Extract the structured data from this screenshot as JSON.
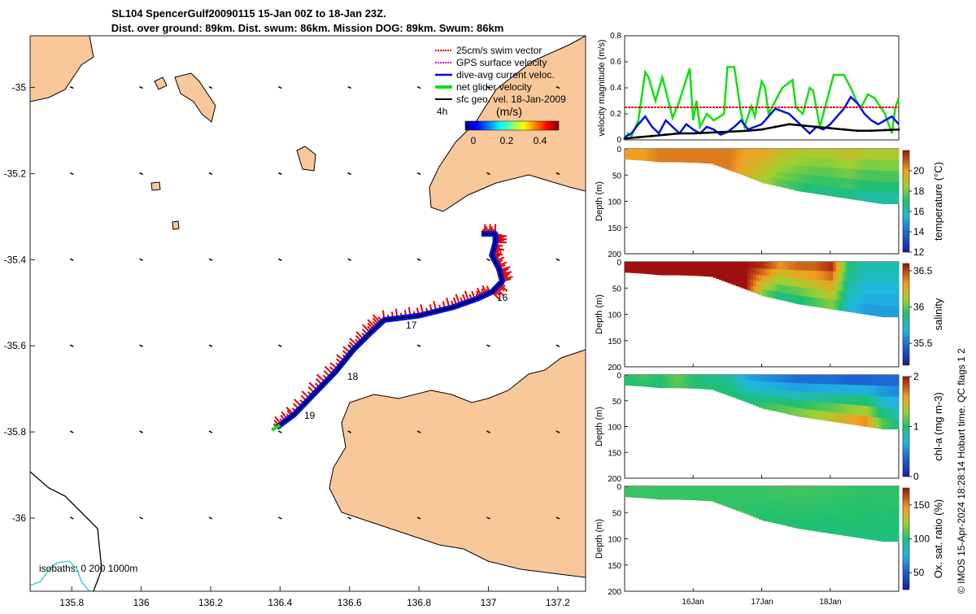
{
  "title": {
    "line1": "SL104 SpencerGulf20090115 15-Jan 00Z to 18-Jan 23Z.",
    "line2": "Dist. over ground: 89km. Dist. swum: 86km. Mission DOG: 89km. Swum: 86km"
  },
  "colors": {
    "land": "#f8c89a",
    "swim": "#e00000",
    "gps": "#e000e0",
    "dive": "#0010e0",
    "net": "#10e010",
    "sfc": "#000000",
    "iso200": "#000000",
    "iso1000": "#22cccc"
  },
  "map": {
    "x_ticks": [
      "135.8",
      "136",
      "136.2",
      "136.4",
      "136.6",
      "136.8",
      "137",
      "137.2"
    ],
    "y_ticks": [
      "-35",
      "-35.2",
      "-35.4",
      "-35.6",
      "-35.8",
      "-36"
    ],
    "xlim": [
      135.68,
      137.28
    ],
    "ylim": [
      -36.17,
      -34.88
    ],
    "legend": [
      "25cm/s swim vector",
      "GPS surface velocity",
      "dive-avg current veloc.",
      "net glider velocity",
      "sfc geo. vel. 18-Jan-2009"
    ],
    "scale_label": "4h",
    "colorbar_label": "(m/s)",
    "colorbar_ticks": [
      "0",
      "0.2",
      "0.4"
    ],
    "day_labels": [
      "16",
      "17",
      "18",
      "19"
    ],
    "isobaths_label": "isobaths: 0   200  1000m",
    "track_lonlat": [
      [
        136.39,
        -35.79
      ],
      [
        136.44,
        -35.76
      ],
      [
        136.5,
        -35.71
      ],
      [
        136.56,
        -35.66
      ],
      [
        136.61,
        -35.61
      ],
      [
        136.66,
        -35.57
      ],
      [
        136.7,
        -35.54
      ],
      [
        136.8,
        -35.53
      ],
      [
        136.9,
        -35.51
      ],
      [
        136.97,
        -35.49
      ],
      [
        137.01,
        -35.475
      ],
      [
        137.04,
        -35.45
      ],
      [
        137.03,
        -35.42
      ],
      [
        137.01,
        -35.39
      ],
      [
        137.02,
        -35.36
      ],
      [
        137.02,
        -35.34
      ],
      [
        136.98,
        -35.34
      ]
    ]
  },
  "chart_data": [
    {
      "type": "line",
      "title": "velocity magnitude",
      "ylabel": "velocity magnitude (m/s)",
      "ylim": [
        0,
        0.8
      ],
      "yticks": [
        "0",
        "0.2",
        "0.4",
        "0.6",
        "0.8"
      ],
      "xlim": [
        15.0,
        19.0
      ],
      "series": [
        {
          "name": "net glider velocity",
          "color": "#10e010",
          "x": [
            15.0,
            15.05,
            15.1,
            15.2,
            15.3,
            15.35,
            15.45,
            15.55,
            15.6,
            15.7,
            15.8,
            15.95,
            16.0,
            16.05,
            16.1,
            16.2,
            16.3,
            16.45,
            16.5,
            16.6,
            16.7,
            16.75,
            16.85,
            16.9,
            17.0,
            17.05,
            17.1,
            17.2,
            17.3,
            17.45,
            17.5,
            17.6,
            17.7,
            17.75,
            17.85,
            17.95,
            18.05,
            18.2,
            18.3,
            18.4,
            18.45,
            18.55,
            18.65,
            18.7,
            18.8,
            18.9,
            18.95,
            19.0
          ],
          "y": [
            0.0,
            0.05,
            0.03,
            0.15,
            0.52,
            0.48,
            0.3,
            0.48,
            0.38,
            0.17,
            0.3,
            0.55,
            0.15,
            0.3,
            0.1,
            0.2,
            0.15,
            0.2,
            0.56,
            0.56,
            0.2,
            0.1,
            0.26,
            0.18,
            0.45,
            0.4,
            0.2,
            0.3,
            0.4,
            0.46,
            0.25,
            0.2,
            0.4,
            0.38,
            0.1,
            0.3,
            0.5,
            0.5,
            0.4,
            0.28,
            0.25,
            0.35,
            0.32,
            0.28,
            0.2,
            0.05,
            0.25,
            0.32
          ]
        },
        {
          "name": "dive-avg current veloc.",
          "color": "#0010e0",
          "x": [
            15.0,
            15.1,
            15.2,
            15.3,
            15.4,
            15.5,
            15.6,
            15.7,
            15.8,
            15.9,
            16.0,
            16.1,
            16.2,
            16.3,
            16.4,
            16.5,
            16.6,
            16.7,
            16.8,
            16.9,
            17.0,
            17.1,
            17.2,
            17.3,
            17.4,
            17.5,
            17.6,
            17.7,
            17.8,
            17.9,
            18.0,
            18.1,
            18.2,
            18.3,
            18.4,
            18.5,
            18.6,
            18.7,
            18.8,
            18.9,
            19.0
          ],
          "y": [
            0.02,
            0.05,
            0.12,
            0.18,
            0.1,
            0.05,
            0.15,
            0.1,
            0.05,
            0.12,
            0.08,
            0.05,
            0.1,
            0.08,
            0.04,
            0.06,
            0.1,
            0.15,
            0.08,
            0.1,
            0.12,
            0.18,
            0.24,
            0.22,
            0.2,
            0.15,
            0.1,
            0.05,
            0.1,
            0.08,
            0.12,
            0.18,
            0.24,
            0.33,
            0.28,
            0.2,
            0.15,
            0.12,
            0.15,
            0.18,
            0.12
          ]
        },
        {
          "name": "sfc geo. vel.",
          "color": "#000000",
          "x": [
            15.0,
            15.2,
            15.4,
            15.6,
            15.8,
            16.0,
            16.2,
            16.4,
            16.6,
            16.8,
            17.0,
            17.2,
            17.4,
            17.6,
            17.8,
            18.0,
            18.2,
            18.4,
            18.6,
            18.8,
            19.0
          ],
          "y": [
            0.01,
            0.02,
            0.03,
            0.04,
            0.05,
            0.05,
            0.055,
            0.06,
            0.065,
            0.07,
            0.08,
            0.1,
            0.12,
            0.11,
            0.1,
            0.09,
            0.08,
            0.07,
            0.07,
            0.075,
            0.08
          ]
        },
        {
          "name": "25cm/s swim vector",
          "color": "#e00000",
          "x": [
            15.0,
            19.0
          ],
          "y": [
            0.25,
            0.25
          ]
        }
      ]
    },
    {
      "type": "heatmap",
      "title": "temperature",
      "ylabel": "Depth (m)",
      "cbar_label": "temperature (°C)",
      "clim": [
        12,
        22
      ],
      "cbar_ticks": [
        "12",
        "14",
        "16",
        "18",
        "20"
      ],
      "yticks": [
        "0",
        "50",
        "100",
        "150",
        "200"
      ],
      "x": [
        15.0,
        15.25,
        15.5,
        15.75,
        16.0,
        16.25,
        16.5,
        16.75,
        17.0,
        17.25,
        17.5,
        17.75,
        18.0,
        18.25,
        18.5,
        18.75,
        19.0
      ],
      "max_depth": [
        20,
        22,
        25,
        25,
        26,
        28,
        40,
        52,
        65,
        72,
        80,
        85,
        90,
        95,
        100,
        105,
        105
      ],
      "surface_values": [
        20,
        20,
        20.5,
        20.5,
        20.5,
        20.5,
        20.5,
        20,
        20,
        19.5,
        19,
        19,
        19,
        19.5,
        19,
        19,
        19
      ],
      "bottom_values": [
        20,
        20,
        20.5,
        20.5,
        20.5,
        20.5,
        20.5,
        19.5,
        18.5,
        17.5,
        17,
        16.5,
        16.5,
        16.5,
        16,
        16,
        16
      ]
    },
    {
      "type": "heatmap",
      "title": "salinity",
      "ylabel": "Depth (m)",
      "cbar_label": "salinity",
      "clim": [
        35.2,
        36.6
      ],
      "cbar_ticks": [
        "35.5",
        "36",
        "36.5"
      ],
      "yticks": [
        "0",
        "50",
        "100",
        "150",
        "200"
      ],
      "x": [
        15.0,
        15.25,
        15.5,
        15.75,
        16.0,
        16.25,
        16.5,
        16.75,
        17.0,
        17.25,
        17.5,
        17.75,
        18.0,
        18.25,
        18.5,
        18.75,
        19.0
      ],
      "max_depth": [
        20,
        22,
        25,
        25,
        26,
        28,
        40,
        52,
        65,
        72,
        80,
        85,
        90,
        95,
        100,
        105,
        105
      ],
      "surface_values": [
        36.6,
        36.6,
        36.6,
        36.6,
        36.6,
        36.6,
        36.6,
        36.6,
        36.6,
        36.4,
        36.5,
        36.5,
        36.6,
        35.9,
        35.8,
        35.8,
        35.8
      ],
      "bottom_values": [
        36.6,
        36.6,
        36.6,
        36.6,
        36.6,
        36.6,
        36.6,
        36.6,
        36.0,
        35.8,
        35.8,
        35.9,
        36.0,
        35.7,
        35.6,
        35.6,
        35.6
      ]
    },
    {
      "type": "heatmap",
      "title": "chl-a",
      "ylabel": "Depth (m)",
      "cbar_label": "chl-a (mg m-3)",
      "clim": [
        0,
        2
      ],
      "cbar_ticks": [
        "0",
        "1",
        "2"
      ],
      "yticks": [
        "0",
        "50",
        "100",
        "150",
        "200"
      ],
      "x": [
        15.0,
        15.25,
        15.5,
        15.75,
        16.0,
        16.25,
        16.5,
        16.75,
        17.0,
        17.25,
        17.5,
        17.75,
        18.0,
        18.25,
        18.5,
        18.75,
        19.0
      ],
      "max_depth": [
        20,
        22,
        25,
        25,
        26,
        28,
        40,
        52,
        65,
        72,
        80,
        85,
        90,
        95,
        100,
        105,
        105
      ],
      "surface_values": [
        1.0,
        1.1,
        1.0,
        1.2,
        1.0,
        0.9,
        0.9,
        0.6,
        0.5,
        0.4,
        0.3,
        0.3,
        0.3,
        0.2,
        0.2,
        0.3,
        0.3
      ],
      "bottom_values": [
        1.0,
        1.0,
        1.0,
        1.1,
        1.0,
        1.0,
        1.0,
        1.0,
        1.1,
        1.2,
        1.3,
        1.4,
        1.5,
        1.7,
        1.8,
        1.2,
        1.0
      ]
    },
    {
      "type": "heatmap",
      "title": "oxygen saturation",
      "ylabel": "Depth (m)",
      "cbar_label": "Ox. sat. ratio (%)",
      "clim": [
        25,
        175
      ],
      "cbar_ticks": [
        "50",
        "100",
        "150"
      ],
      "yticks": [
        "0",
        "50",
        "100",
        "150",
        "200"
      ],
      "x": [
        15.0,
        15.25,
        15.5,
        15.75,
        16.0,
        16.25,
        16.5,
        16.75,
        17.0,
        17.25,
        17.5,
        17.75,
        18.0,
        18.25,
        18.5,
        18.75,
        19.0
      ],
      "max_depth": [
        20,
        22,
        25,
        25,
        26,
        28,
        40,
        52,
        65,
        72,
        80,
        85,
        90,
        95,
        100,
        105,
        105
      ],
      "surface_values": [
        105,
        105,
        104,
        104,
        104,
        104,
        104,
        104,
        105,
        106,
        107,
        106,
        105,
        104,
        103,
        103,
        103
      ],
      "bottom_values": [
        104,
        104,
        104,
        104,
        104,
        104,
        103,
        103,
        100,
        100,
        99,
        98,
        98,
        98,
        98,
        98,
        98
      ]
    }
  ],
  "shared_x_ticks": [
    "16Jan",
    "17Jan",
    "18Jan"
  ],
  "footer": "© IMOS 15-Apr-2024 18:28:14 Hobart time. QC flags 1  2"
}
